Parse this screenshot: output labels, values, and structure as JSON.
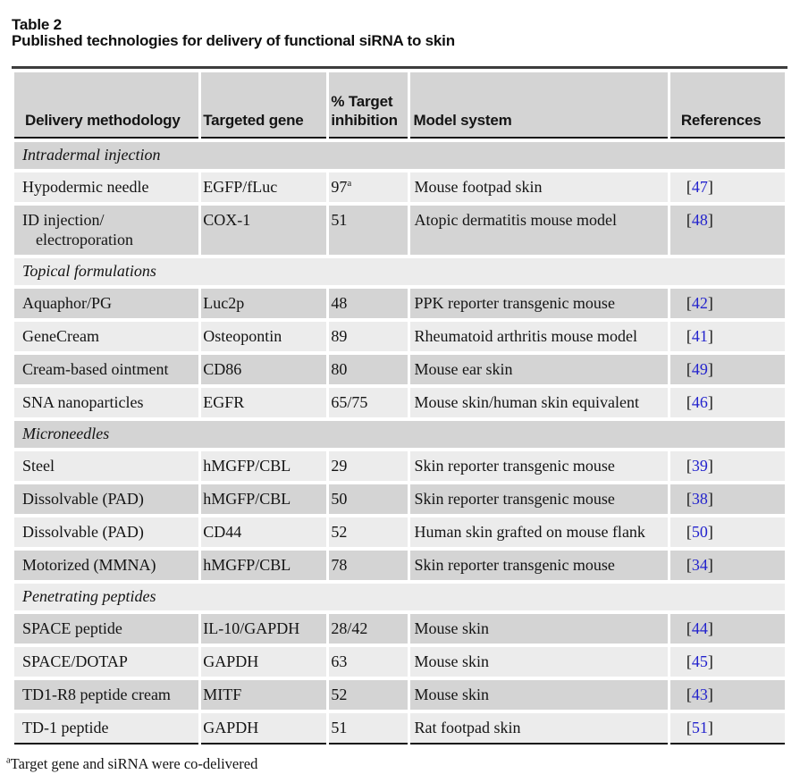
{
  "title": "Table 2",
  "subtitle": "Published technologies for delivery of functional siRNA to skin",
  "colors": {
    "row_dark": "#d4d4d4",
    "row_light": "#ececec",
    "reference_blue": "#2323cd",
    "rule_black": "#151515",
    "top_rule": "#3d3d3d",
    "background": "#ffffff"
  },
  "refs": {
    "open": "[",
    "close": "]"
  },
  "table": {
    "header": {
      "col1": "Delivery methodology",
      "col2": "Targeted gene",
      "col3_line1": "% Target",
      "col3_line2": "inhibition",
      "col4": "Model system",
      "col5": "References"
    },
    "rows": [
      {
        "type": "section",
        "label": "Intradermal injection"
      },
      {
        "type": "data",
        "method": "Hypodermic needle",
        "gene": "EGFP/fLuc",
        "inhibition": "97",
        "sup": "a",
        "model": "Mouse footpad skin",
        "ref": "47"
      },
      {
        "type": "data",
        "method": "ID injection/",
        "method2": "electroporation",
        "gene": "COX-1",
        "inhibition": "51",
        "model": "Atopic dermatitis mouse model",
        "ref": "48"
      },
      {
        "type": "section",
        "label": "Topical formulations"
      },
      {
        "type": "data",
        "method": "Aquaphor/PG",
        "gene": "Luc2p",
        "inhibition": "48",
        "model": "PPK reporter transgenic mouse",
        "ref": "42"
      },
      {
        "type": "data",
        "method": "GeneCream",
        "gene": "Osteopontin",
        "inhibition": "89",
        "model": "Rheumatoid arthritis mouse model",
        "ref": "41"
      },
      {
        "type": "data",
        "method": "Cream-based ointment",
        "gene": "CD86",
        "inhibition": "80",
        "model": "Mouse ear skin",
        "ref": "49"
      },
      {
        "type": "data",
        "method": "SNA nanoparticles",
        "gene": "EGFR",
        "inhibition": "65/75",
        "model": "Mouse skin/human skin equivalent",
        "ref": "46"
      },
      {
        "type": "section",
        "label": "Microneedles"
      },
      {
        "type": "data",
        "method": "Steel",
        "gene": "hMGFP/CBL",
        "inhibition": "29",
        "model": "Skin reporter transgenic mouse",
        "ref": "39"
      },
      {
        "type": "data",
        "method": "Dissolvable (PAD)",
        "gene": "hMGFP/CBL",
        "inhibition": "50",
        "model": "Skin reporter transgenic mouse",
        "ref": "38"
      },
      {
        "type": "data",
        "method": "Dissolvable (PAD)",
        "gene": "CD44",
        "inhibition": "52",
        "model": "Human skin grafted on mouse flank",
        "ref": "50"
      },
      {
        "type": "data",
        "method": "Motorized (MMNA)",
        "gene": "hMGFP/CBL",
        "inhibition": "78",
        "model": "Skin reporter transgenic mouse",
        "ref": "34"
      },
      {
        "type": "section",
        "label": "Penetrating peptides"
      },
      {
        "type": "data",
        "method": "SPACE peptide",
        "gene": "IL-10/GAPDH",
        "inhibition": "28/42",
        "model": "Mouse skin",
        "ref": "44"
      },
      {
        "type": "data",
        "method": "SPACE/DOTAP",
        "gene": "GAPDH",
        "inhibition": "63",
        "model": "Mouse skin",
        "ref": "45"
      },
      {
        "type": "data",
        "method": "TD1-R8 peptide cream",
        "gene": "MITF",
        "inhibition": "52",
        "model": "Mouse skin",
        "ref": "43"
      },
      {
        "type": "data",
        "method": "TD-1 peptide",
        "gene": "GAPDH",
        "inhibition": "51",
        "model": "Rat footpad skin",
        "ref": "51"
      }
    ]
  },
  "footnote": {
    "marker": "a",
    "text": "Target gene and siRNA were co-delivered"
  }
}
